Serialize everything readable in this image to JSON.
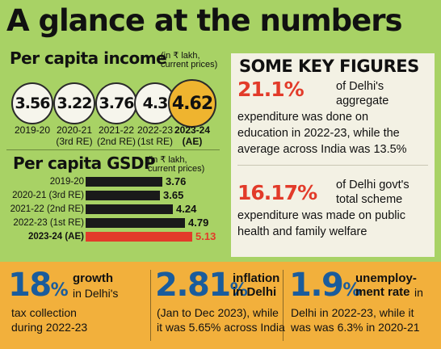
{
  "title": "A glance at the numbers",
  "per_capita_income": {
    "heading": "Per capita income",
    "note": [
      "(in ₹ lakh,",
      "current prices)"
    ],
    "items": [
      {
        "value": "3.56",
        "year": [
          "2019-20"
        ]
      },
      {
        "value": "3.22",
        "year": [
          "2020-21",
          "(3rd RE)"
        ]
      },
      {
        "value": "3.76",
        "year": [
          "2021-22",
          "(2nd RE)"
        ]
      },
      {
        "value": "4.3",
        "year": [
          "2022-23",
          "(1st RE)"
        ]
      },
      {
        "value": "4.62",
        "year": [
          "2023-24",
          "(AE)"
        ]
      }
    ]
  },
  "gsdp": {
    "heading": "Per capita GSDP",
    "note": [
      "(in ₹ lakh,",
      "current prices)"
    ],
    "rows": [
      {
        "label": "2019-20",
        "value": "3.76",
        "num": 3.76
      },
      {
        "label": "2020-21 (3rd RE)",
        "value": "3.65",
        "num": 3.65
      },
      {
        "label": "2021-22 (2nd RE)",
        "value": "4.24",
        "num": 4.24
      },
      {
        "label": "2022-23 (1st RE)",
        "value": "4.79",
        "num": 4.79
      },
      {
        "label": "2023-24 (AE)",
        "value": "5.13",
        "num": 5.13
      }
    ]
  },
  "key_figures": {
    "heading": "SOME KEY FIGURES",
    "items": [
      {
        "pct": "21.1%",
        "lines": [
          "of Delhi's",
          "aggregate",
          "expenditure was done on",
          "education in 2022-23, while the",
          "average across India was 13.5%"
        ]
      },
      {
        "pct": "16.17%",
        "lines": [
          "of Delhi govt's",
          "total scheme",
          "expenditure was made on public",
          "health and family welfare"
        ]
      }
    ]
  },
  "stats": [
    {
      "num": "18",
      "pct": "%",
      "bold": [
        "growth"
      ],
      "lines": [
        "in Delhi's",
        "tax collection",
        "during 2022-23"
      ]
    },
    {
      "num": "2.81",
      "pct": "%",
      "bold": [
        "inflation",
        "in Delhi"
      ],
      "lines": [
        "(Jan to Dec 2023), while",
        "it was 5.65% across India"
      ]
    },
    {
      "num": "1.9",
      "pct": "%",
      "bold": [
        "unemploy-",
        "ment rate"
      ],
      "lines": [
        "in",
        "Delhi in 2022-23, while it",
        "was was 6.3% in 2020-21"
      ]
    }
  ],
  "colors": {
    "background": "#a8d265",
    "highlight": "#efb42f",
    "accent_red": "#e23b2a",
    "accent_blue": "#1a5c9c",
    "strip": "#f2b03c"
  }
}
